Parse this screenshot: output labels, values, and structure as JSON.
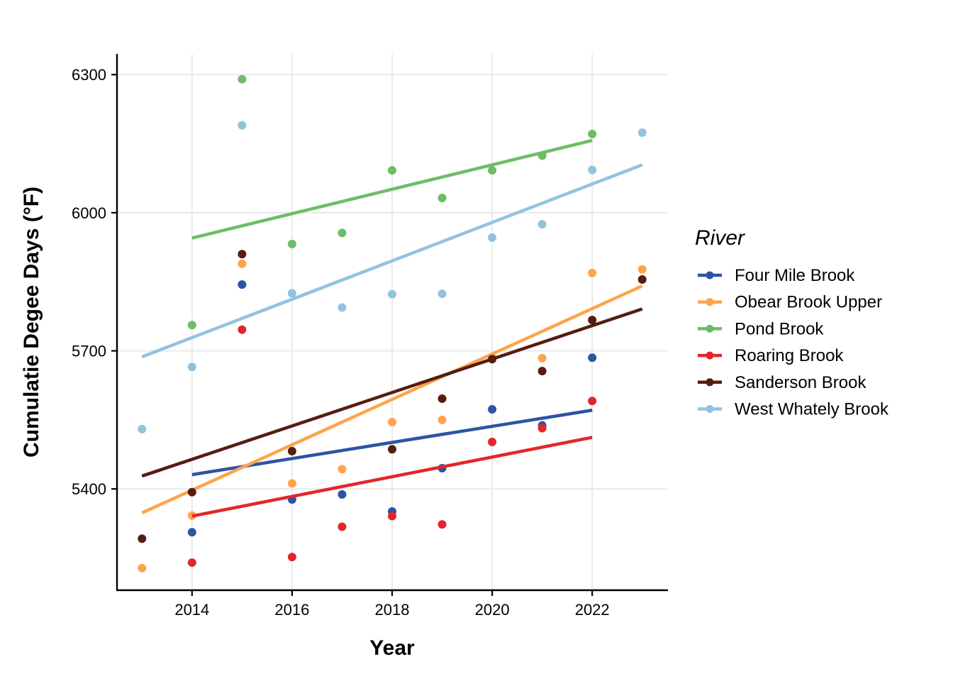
{
  "chart_data": {
    "type": "scatter",
    "xlabel": "Year",
    "ylabel": "Cumulatie Degee Days (°F)",
    "xlim": [
      2012.5,
      2023.5
    ],
    "ylim": [
      5180,
      6345
    ],
    "xticks": [
      2014,
      2016,
      2018,
      2020,
      2022
    ],
    "yticks": [
      5400,
      5700,
      6000,
      6300
    ],
    "grid": true,
    "legend": {
      "title": "River",
      "position": "right"
    },
    "series": [
      {
        "name": "Four Mile Brook",
        "color": "#2B55A3",
        "points": [
          [
            2014,
            5306
          ],
          [
            2015,
            5844
          ],
          [
            2016,
            5377
          ],
          [
            2017,
            5388
          ],
          [
            2018,
            5351
          ],
          [
            2019,
            5445
          ],
          [
            2020,
            5573
          ],
          [
            2021,
            5538
          ],
          [
            2022,
            5685
          ]
        ],
        "trend": [
          [
            2014,
            5431
          ],
          [
            2022,
            5571
          ]
        ]
      },
      {
        "name": "Obear Brook Upper",
        "color": "#FDA44B",
        "points": [
          [
            2013,
            5228
          ],
          [
            2014,
            5342
          ],
          [
            2015,
            5889
          ],
          [
            2016,
            5412
          ],
          [
            2017,
            5443
          ],
          [
            2018,
            5545
          ],
          [
            2019,
            5550
          ],
          [
            2020,
            5687
          ],
          [
            2021,
            5684
          ],
          [
            2022,
            5869
          ],
          [
            2023,
            5877
          ]
        ],
        "trend": [
          [
            2013,
            5348
          ],
          [
            2023,
            5841
          ]
        ]
      },
      {
        "name": "Pond Brook",
        "color": "#6DBD66",
        "points": [
          [
            2014,
            5756
          ],
          [
            2015,
            6290
          ],
          [
            2016,
            5932
          ],
          [
            2017,
            5956
          ],
          [
            2018,
            6092
          ],
          [
            2019,
            6032
          ],
          [
            2020,
            6092
          ],
          [
            2021,
            6124
          ],
          [
            2022,
            6171
          ]
        ],
        "trend": [
          [
            2014,
            5945
          ],
          [
            2022,
            6157
          ]
        ]
      },
      {
        "name": "Roaring Brook",
        "color": "#E3262A",
        "points": [
          [
            2014,
            5240
          ],
          [
            2015,
            5746
          ],
          [
            2016,
            5252
          ],
          [
            2017,
            5318
          ],
          [
            2018,
            5341
          ],
          [
            2019,
            5323
          ],
          [
            2020,
            5502
          ],
          [
            2021,
            5532
          ],
          [
            2022,
            5591
          ]
        ],
        "trend": [
          [
            2014,
            5341
          ],
          [
            2022,
            5512
          ]
        ]
      },
      {
        "name": "Sanderson Brook",
        "color": "#561D0F",
        "points": [
          [
            2013,
            5292
          ],
          [
            2014,
            5393
          ],
          [
            2015,
            5910
          ],
          [
            2016,
            5482
          ],
          [
            2018,
            5486
          ],
          [
            2019,
            5596
          ],
          [
            2020,
            5682
          ],
          [
            2021,
            5656
          ],
          [
            2022,
            5767
          ],
          [
            2023,
            5855
          ]
        ],
        "trend": [
          [
            2013,
            5428
          ],
          [
            2023,
            5791
          ]
        ]
      },
      {
        "name": "West Whately Brook",
        "color": "#92C3DE",
        "points": [
          [
            2013,
            5530
          ],
          [
            2014,
            5665
          ],
          [
            2015,
            6190
          ],
          [
            2016,
            5825
          ],
          [
            2017,
            5794
          ],
          [
            2018,
            5823
          ],
          [
            2019,
            5824
          ],
          [
            2020,
            5946
          ],
          [
            2021,
            5975
          ],
          [
            2022,
            6093
          ],
          [
            2023,
            6174
          ]
        ],
        "trend": [
          [
            2013,
            5687
          ],
          [
            2023,
            6104
          ]
        ]
      }
    ]
  }
}
